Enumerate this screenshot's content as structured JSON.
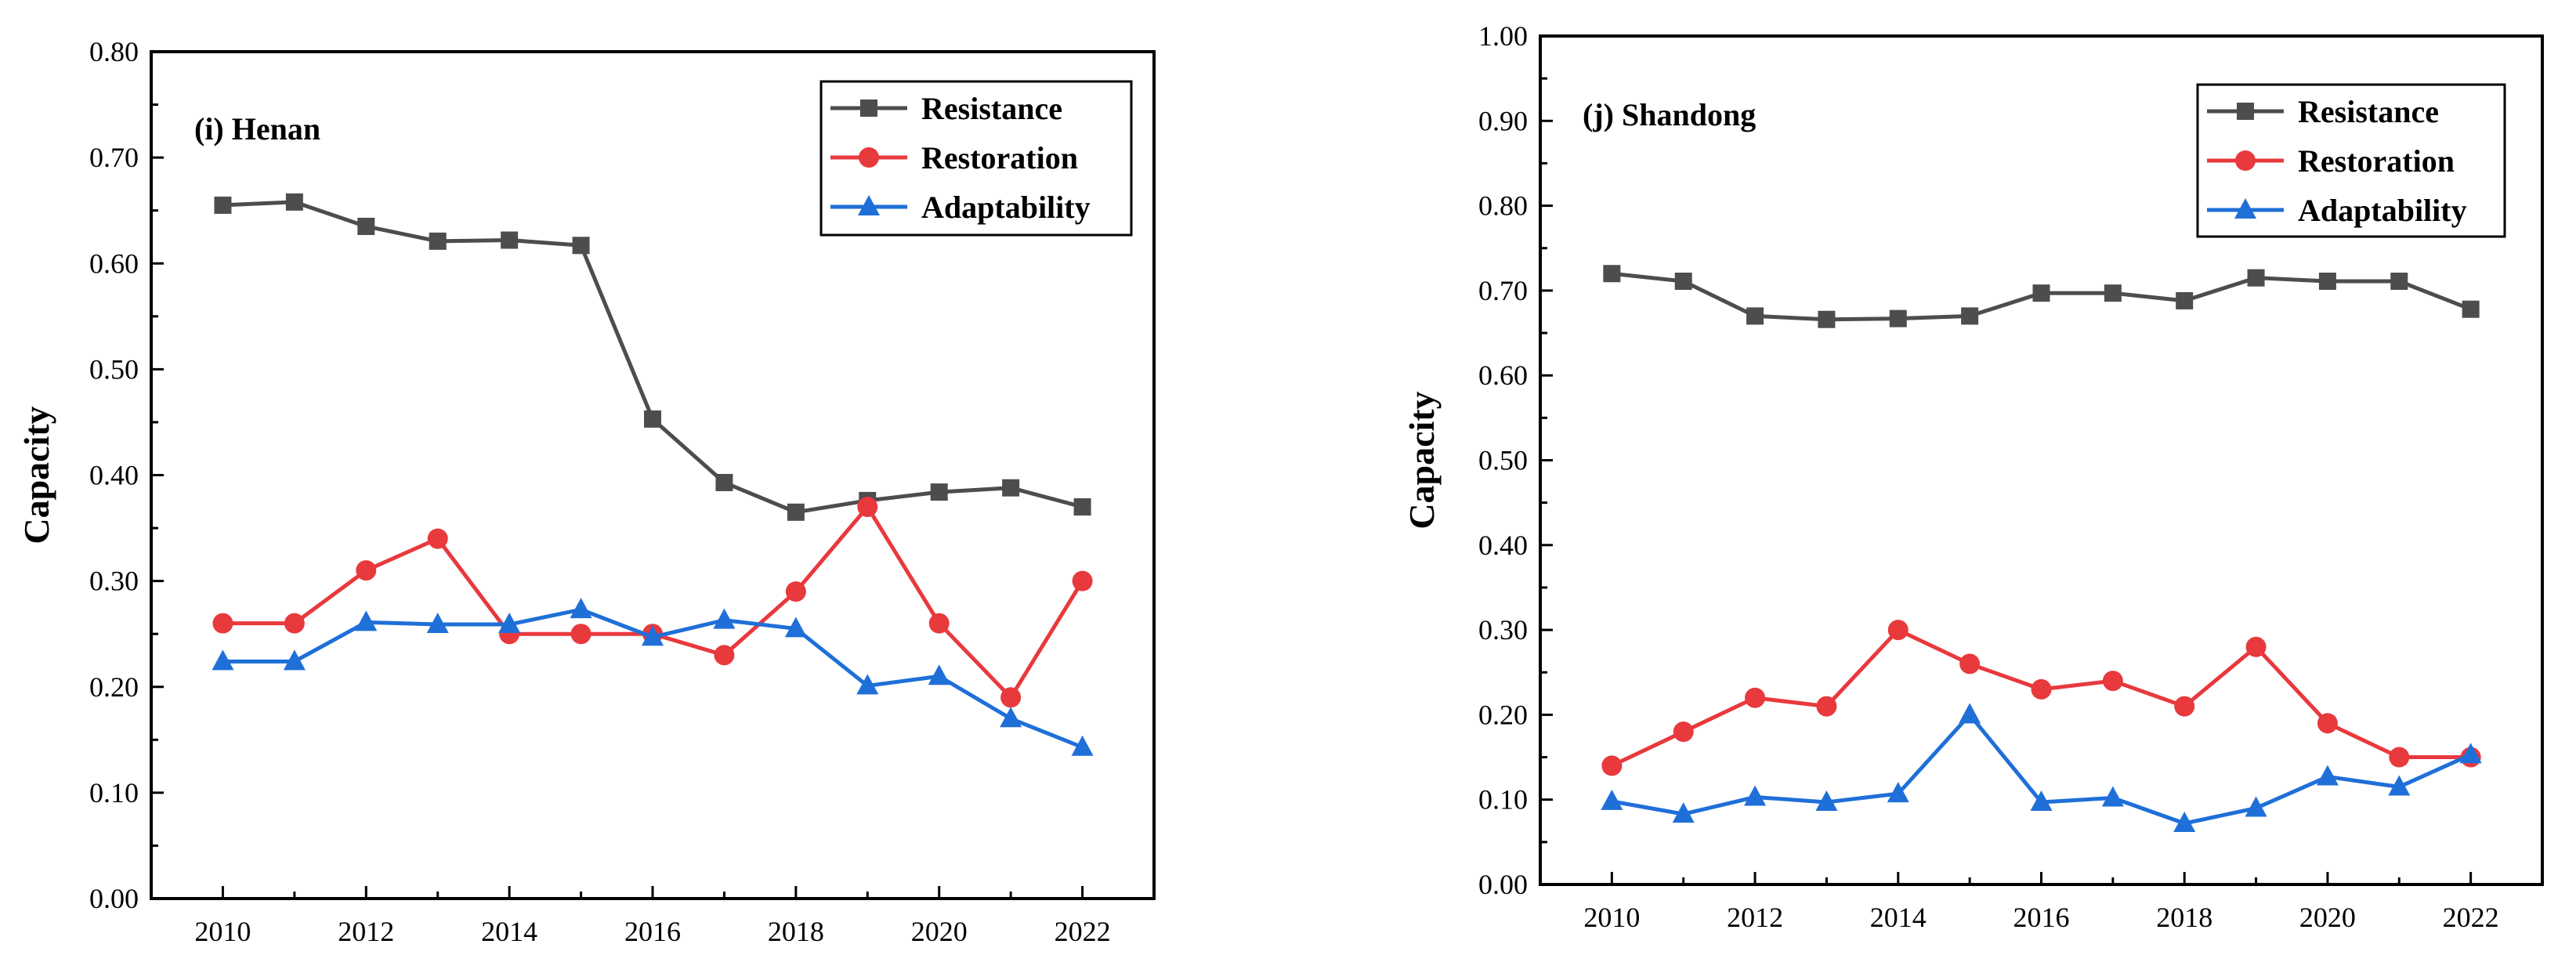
{
  "chart_data": [
    {
      "type": "line",
      "title": "(i) Henan",
      "xlabel": "",
      "ylabel": "Capacity",
      "x": [
        2010,
        2011,
        2012,
        2013,
        2014,
        2015,
        2016,
        2017,
        2018,
        2019,
        2020,
        2021,
        2022
      ],
      "xlim": [
        2009,
        2023
      ],
      "xticks": [
        "2010",
        "2012",
        "2014",
        "2016",
        "2018",
        "2020",
        "2022"
      ],
      "ylim": [
        0,
        0.8
      ],
      "yticks": [
        "0.00",
        "0.10",
        "0.20",
        "0.30",
        "0.40",
        "0.50",
        "0.60",
        "0.70",
        "0.80"
      ],
      "grid": false,
      "legend_position": "top-right",
      "series": [
        {
          "name": "Resistance",
          "color": "#4d4d4d",
          "marker": "square",
          "values": [
            0.655,
            0.658,
            0.635,
            0.621,
            0.622,
            0.617,
            0.453,
            0.393,
            0.365,
            0.376,
            0.384,
            0.388,
            0.37
          ]
        },
        {
          "name": "Restoration",
          "color": "#e8393d",
          "marker": "circle",
          "values": [
            0.26,
            0.26,
            0.31,
            0.34,
            0.25,
            0.25,
            0.25,
            0.23,
            0.29,
            0.37,
            0.26,
            0.19,
            0.3
          ]
        },
        {
          "name": "Adaptability",
          "color": "#1f6fd8",
          "marker": "triangle",
          "values": [
            0.224,
            0.224,
            0.261,
            0.259,
            0.259,
            0.273,
            0.247,
            0.263,
            0.255,
            0.201,
            0.21,
            0.17,
            0.143
          ]
        }
      ]
    },
    {
      "type": "line",
      "title": "(j) Shandong",
      "xlabel": "",
      "ylabel": "Capacity",
      "x": [
        2010,
        2011,
        2012,
        2013,
        2014,
        2015,
        2016,
        2017,
        2018,
        2019,
        2020,
        2021,
        2022
      ],
      "xlim": [
        2009,
        2023
      ],
      "xticks": [
        "2010",
        "2012",
        "2014",
        "2016",
        "2018",
        "2020",
        "2022"
      ],
      "ylim": [
        0,
        1.0
      ],
      "yticks": [
        "0.00",
        "0.10",
        "0.20",
        "0.30",
        "0.40",
        "0.50",
        "0.60",
        "0.70",
        "0.80",
        "0.90",
        "1.00"
      ],
      "grid": false,
      "legend_position": "top-right",
      "series": [
        {
          "name": "Resistance",
          "color": "#4d4d4d",
          "marker": "square",
          "values": [
            0.72,
            0.711,
            0.67,
            0.666,
            0.667,
            0.67,
            0.697,
            0.697,
            0.688,
            0.715,
            0.711,
            0.711,
            0.678
          ]
        },
        {
          "name": "Restoration",
          "color": "#e8393d",
          "marker": "circle",
          "values": [
            0.14,
            0.18,
            0.22,
            0.21,
            0.3,
            0.26,
            0.23,
            0.24,
            0.21,
            0.28,
            0.19,
            0.15,
            0.15
          ]
        },
        {
          "name": "Adaptability",
          "color": "#1f6fd8",
          "marker": "triangle",
          "values": [
            0.098,
            0.083,
            0.103,
            0.097,
            0.107,
            0.2,
            0.097,
            0.102,
            0.072,
            0.09,
            0.127,
            0.115,
            0.153
          ]
        }
      ]
    }
  ]
}
